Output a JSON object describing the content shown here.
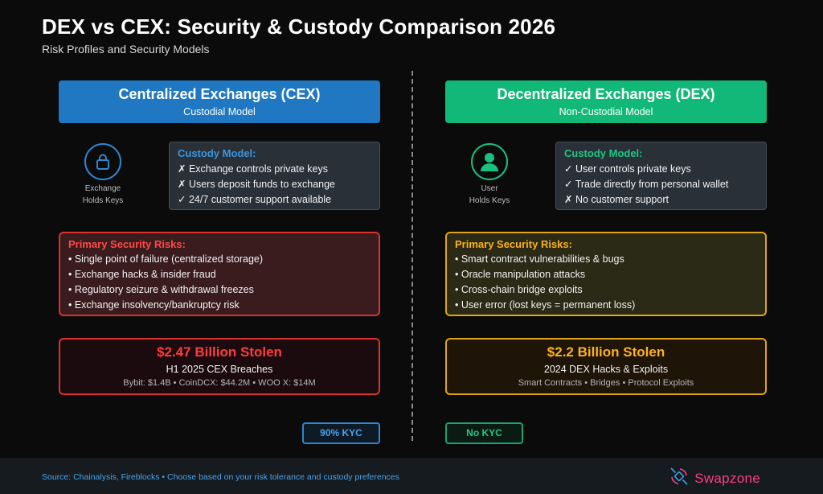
{
  "header": {
    "title": "DEX vs CEX: Security & Custody Comparison 2026",
    "subtitle": "Risk Profiles and Security Models"
  },
  "cex": {
    "name": "Centralized Exchanges (CEX)",
    "model": "Custodial Model",
    "icon": "lock-icon",
    "icon_label_1": "Exchange",
    "icon_label_2": "Holds Keys",
    "custody_title": "Custody Model:",
    "custody_items": [
      "✗ Exchange controls private keys",
      "✗ Users deposit funds to exchange",
      "✓ 24/7 customer support available"
    ],
    "risk_title": "Primary Security Risks:",
    "risks": [
      "• Single point of failure (centralized storage)",
      "• Exchange hacks & insider fraud",
      "• Regulatory seizure & withdrawal freezes",
      "• Exchange insolvency/bankruptcy risk"
    ],
    "stolen_amount": "$2.47 Billion Stolen",
    "stolen_period": "H1 2025 CEX Breaches",
    "stolen_detail": "Bybit: $1.4B • CoinDCX: $44.2M • WOO X: $14M",
    "kyc": "90% KYC",
    "color": "#1f78c1"
  },
  "dex": {
    "name": "Decentralized Exchanges (DEX)",
    "model": "Non-Custodial Model",
    "icon": "user-icon",
    "icon_label_1": "User",
    "icon_label_2": "Holds Keys",
    "custody_title": "Custody Model:",
    "custody_items": [
      "✓ User controls private keys",
      "✓ Trade directly from personal wallet",
      "✗ No customer support"
    ],
    "risk_title": "Primary Security Risks:",
    "risks": [
      "• Smart contract vulnerabilities & bugs",
      "• Oracle manipulation attacks",
      "• Cross-chain bridge exploits",
      "• User error (lost keys = permanent loss)"
    ],
    "stolen_amount": "$2.2 Billion Stolen",
    "stolen_period": "2024 DEX Hacks & Exploits",
    "stolen_detail": "Smart Contracts • Bridges • Protocol Exploits",
    "kyc": "No KYC",
    "color": "#12b877"
  },
  "footer": {
    "source": "Source: Chainalysis, Fireblocks • Choose based on your risk tolerance and custody preferences",
    "brand": "Swapzone",
    "brand_icon": "satellite-icon",
    "brand_color": "#ff3f7f"
  }
}
